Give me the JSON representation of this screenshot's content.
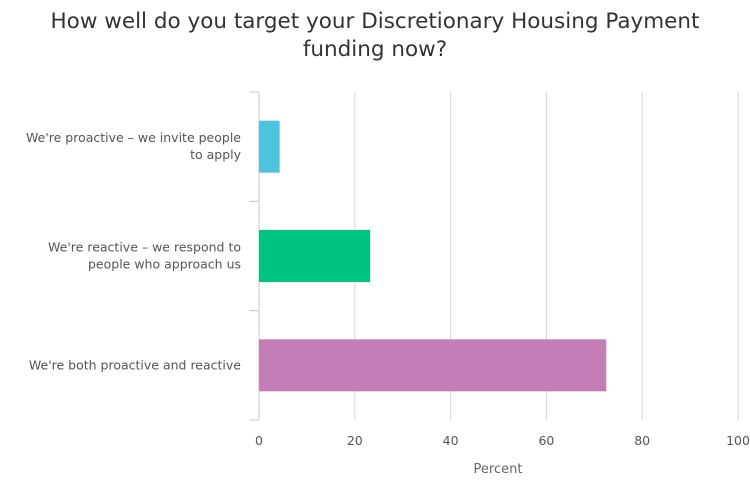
{
  "chart_data": {
    "type": "bar",
    "orientation": "horizontal",
    "title": [
      "How well do you target your Discretionary Housing Payment",
      "funding now?"
    ],
    "xlabel": "Percent",
    "ylabel": "",
    "xlim": [
      0,
      100
    ],
    "x_ticks": [
      0,
      20,
      40,
      60,
      80,
      100
    ],
    "grid": true,
    "legend": "none",
    "categories": [
      [
        "We're proactive – we invite people",
        "to apply"
      ],
      [
        "We're reactive – we respond to",
        "people who approach us"
      ],
      [
        "We're both proactive and reactive"
      ]
    ],
    "values": [
      4.3,
      23.2,
      72.5
    ],
    "colors": [
      "#4fc3dc",
      "#00c281",
      "#c57db5"
    ]
  }
}
